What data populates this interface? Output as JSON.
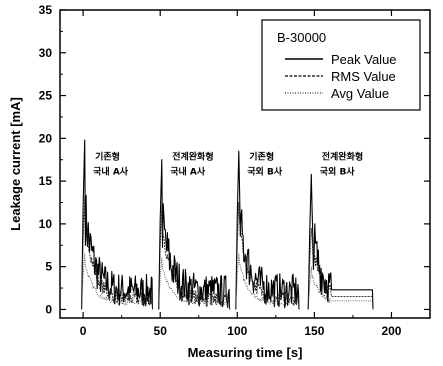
{
  "chart_data": {
    "type": "line",
    "title": "",
    "xlabel": "Measuring time [s]",
    "ylabel": "Leakage current [mA]",
    "xlim": [
      -15,
      225
    ],
    "ylim": [
      -1,
      35
    ],
    "xticks": [
      0,
      50,
      100,
      150,
      200
    ],
    "yticks": [
      0,
      5,
      10,
      15,
      20,
      25,
      30,
      35
    ],
    "grid": false,
    "legend": {
      "title": "B-30000",
      "position": "top-right",
      "entries": [
        "Peak Value",
        "RMS Value",
        "Avg Value"
      ]
    },
    "segments": [
      {
        "label": [
          "기존형",
          "국내 A사"
        ],
        "start": 0,
        "end": 45,
        "peak_max": 19.8,
        "rms_max": 13.0,
        "avg_max": 6.5,
        "tail_peak": 3.0,
        "tail_rms": 1.2
      },
      {
        "label": [
          "전계완화형",
          "국내 A사"
        ],
        "start": 50,
        "end": 95,
        "peak_max": 17.5,
        "rms_max": 12.0,
        "avg_max": 6.0,
        "tail_peak": 3.0,
        "tail_rms": 1.2
      },
      {
        "label": [
          "기존형",
          "국외 B사"
        ],
        "start": 100,
        "end": 140,
        "peak_max": 18.5,
        "rms_max": 12.5,
        "avg_max": 6.5,
        "tail_peak": 3.0,
        "tail_rms": 1.2
      },
      {
        "label": [
          "전계완화형",
          "국외 B사"
        ],
        "start": 147,
        "end": 188,
        "peak_max": 15.8,
        "rms_max": 9.5,
        "avg_max": 5.0,
        "tail_peak": 2.3,
        "tail_rms": 1.5
      }
    ],
    "series": [
      {
        "name": "Peak Value"
      },
      {
        "name": "RMS Value"
      },
      {
        "name": "Avg Value"
      }
    ]
  }
}
